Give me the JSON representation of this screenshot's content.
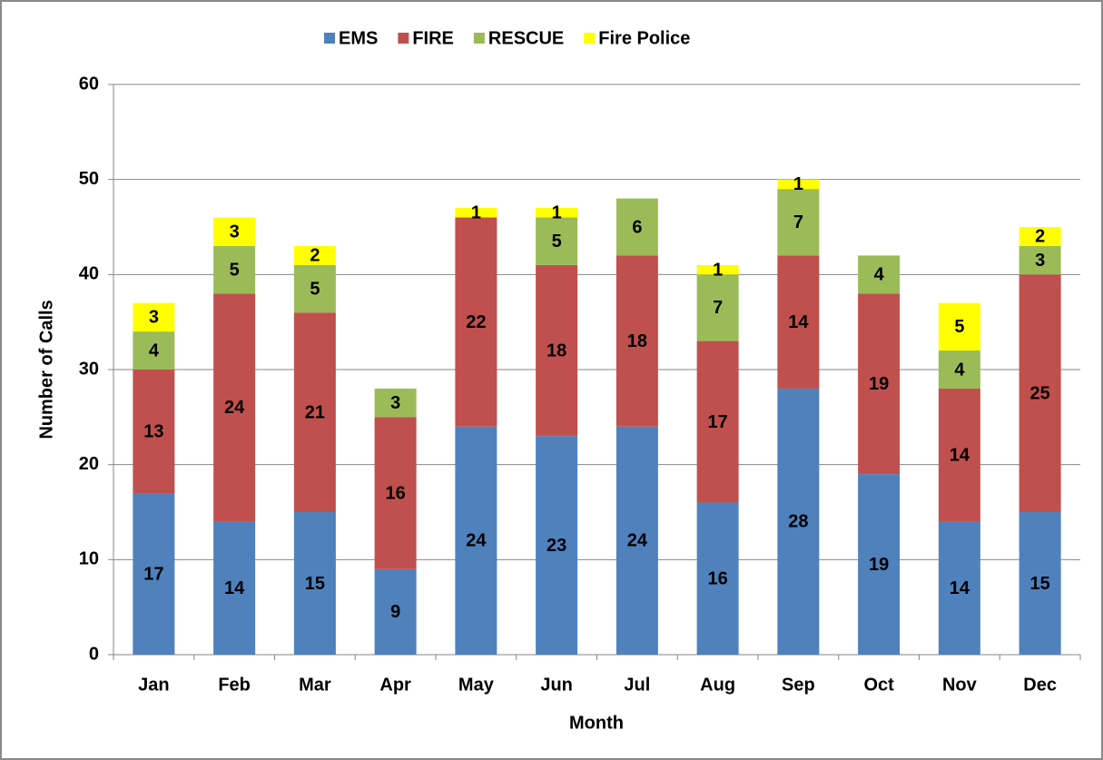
{
  "chart_data": {
    "type": "stacked_bar",
    "xlabel": "Month",
    "ylabel": "Number of Calls",
    "categories": [
      "Jan",
      "Feb",
      "Mar",
      "Apr",
      "May",
      "Jun",
      "Jul",
      "Aug",
      "Sep",
      "Oct",
      "Nov",
      "Dec"
    ],
    "series": [
      {
        "name": "EMS",
        "color": "#4f81bd",
        "values": [
          17,
          14,
          15,
          9,
          24,
          23,
          24,
          16,
          28,
          19,
          14,
          15
        ]
      },
      {
        "name": "FIRE",
        "color": "#c0504d",
        "values": [
          13,
          24,
          21,
          16,
          22,
          18,
          18,
          17,
          14,
          19,
          14,
          25
        ]
      },
      {
        "name": "RESCUE",
        "color": "#9bbb59",
        "values": [
          4,
          5,
          5,
          3,
          null,
          5,
          6,
          7,
          7,
          4,
          4,
          3
        ]
      },
      {
        "name": "Fire Police",
        "color": "#ffff00",
        "values": [
          3,
          3,
          2,
          null,
          1,
          1,
          null,
          1,
          1,
          null,
          5,
          2
        ]
      }
    ],
    "ylim": [
      0,
      60
    ],
    "yticks": [
      0,
      10,
      20,
      30,
      40,
      50,
      60
    ],
    "grid": true,
    "legend": "top"
  }
}
